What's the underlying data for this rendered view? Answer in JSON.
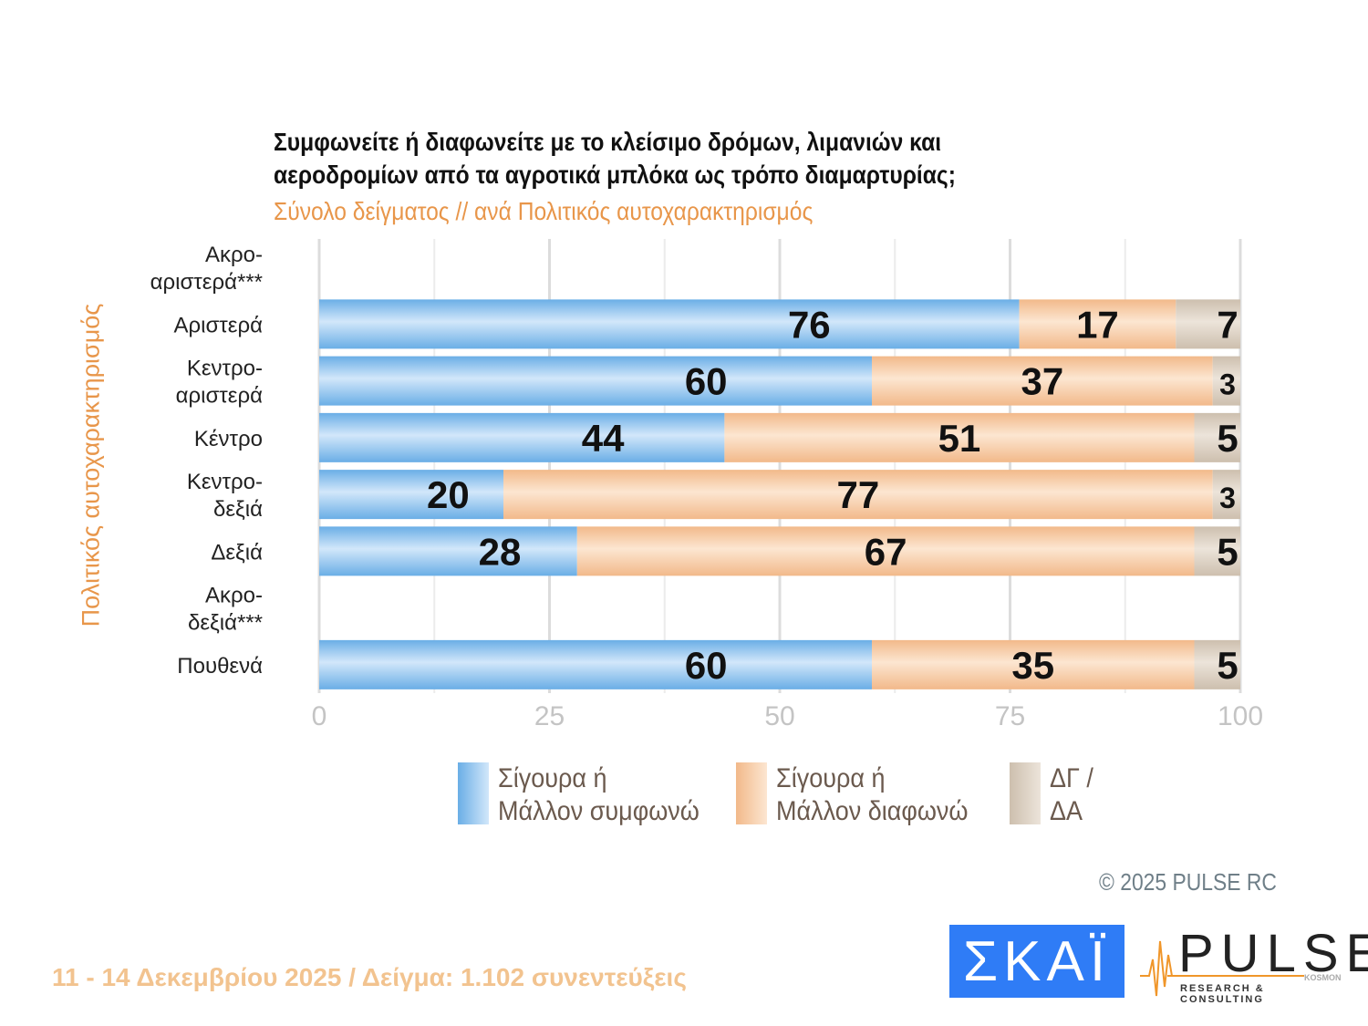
{
  "title_lines": [
    "Συμφωνείτε ή διαφωνείτε με το κλείσιμο δρόμων, λιμανιών και",
    "αεροδρομίων από τα αγροτικά μπλόκα ως τρόπο διαμαρτυρίας;"
  ],
  "subtitle": "Σύνολο δείγματος // ανά Πολιτικός αυτοχαρακτηρισμός",
  "chart_data": {
    "type": "bar",
    "orientation": "horizontal",
    "stacked": true,
    "ylabel": "Πολιτικός αυτοχαρακτηρισμός",
    "categories": [
      [
        "Ακρο-",
        "αριστερά***"
      ],
      [
        "Αριστερά"
      ],
      [
        "Κεντρο-",
        "αριστερά"
      ],
      [
        "Κέντρο"
      ],
      [
        "Κεντρο-",
        "δεξιά"
      ],
      [
        "Δεξιά"
      ],
      [
        "Ακρο-",
        "δεξιά***"
      ],
      [
        "Πουθενά"
      ]
    ],
    "series": [
      {
        "name": "Σίγουρα ή Μάλλον συμφωνώ",
        "legend_lines": [
          "Σίγουρα ή",
          "Μάλλον συμφωνώ"
        ],
        "color": "#6aaee6",
        "values": [
          null,
          76,
          60,
          44,
          20,
          28,
          null,
          60
        ]
      },
      {
        "name": "Σίγουρα ή Μάλλον διαφωνώ",
        "legend_lines": [
          "Σίγουρα ή",
          "Μάλλον διαφωνώ"
        ],
        "color": "#f2b98a",
        "values": [
          null,
          17,
          37,
          51,
          77,
          67,
          null,
          35
        ]
      },
      {
        "name": "ΔΓ / ΔΑ",
        "legend_lines": [
          "ΔΓ /",
          "ΔΑ"
        ],
        "color": "#cdbfae",
        "values": [
          null,
          7,
          3,
          5,
          3,
          5,
          null,
          5
        ]
      }
    ],
    "xlim": [
      0,
      100
    ],
    "xticks": [
      0,
      25,
      50,
      75,
      100
    ],
    "grid": true,
    "legend_position": "bottom"
  },
  "copyright": "©  2025  PULSE RC",
  "footer": "11 - 14 Δεκεμβρίου 2025  /  Δείγμα:  1.102 συνεντεύξεις",
  "logos": {
    "skai": "ΣΚΑΪ",
    "pulse": "PULSE",
    "pulse_sub": "RESEARCH & CONSULTING",
    "pulse_kosmon": "KOSMON"
  }
}
